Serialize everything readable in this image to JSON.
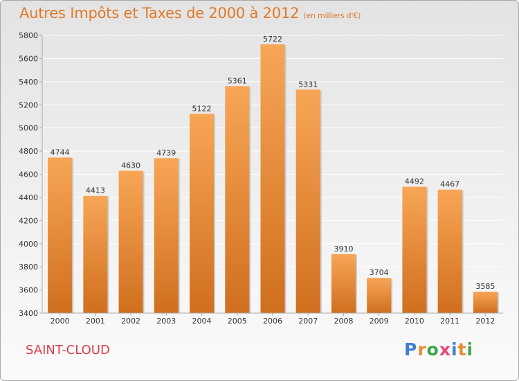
{
  "title": "Autres Impôts et Taxes de 2000 à 2012",
  "subtitle": "(en milliers d'€)",
  "city": "SAINT-CLOUD",
  "logo": [
    "P",
    "r",
    "o",
    "x",
    "i",
    "t",
    "i"
  ],
  "colors": {
    "bar_light": "#f7a656",
    "bar_dark": "#d06f1e",
    "title": "#e1792a",
    "city": "#d93f4c"
  },
  "chart_data": {
    "type": "bar",
    "title": "Autres Impôts et Taxes de 2000 à 2012",
    "subtitle": "(en milliers d'€)",
    "categories": [
      "2000",
      "2001",
      "2002",
      "2003",
      "2004",
      "2005",
      "2006",
      "2007",
      "2008",
      "2009",
      "2010",
      "2011",
      "2012"
    ],
    "values": [
      4744,
      4413,
      4630,
      4739,
      5122,
      5361,
      5722,
      5331,
      3910,
      3704,
      4492,
      4467,
      3585
    ],
    "ylim": [
      3400,
      5800
    ],
    "yticks": [
      3400,
      3600,
      3800,
      4000,
      4200,
      4400,
      4600,
      4800,
      5000,
      5200,
      5400,
      5600,
      5800
    ],
    "grid": true,
    "data_labels": true
  }
}
